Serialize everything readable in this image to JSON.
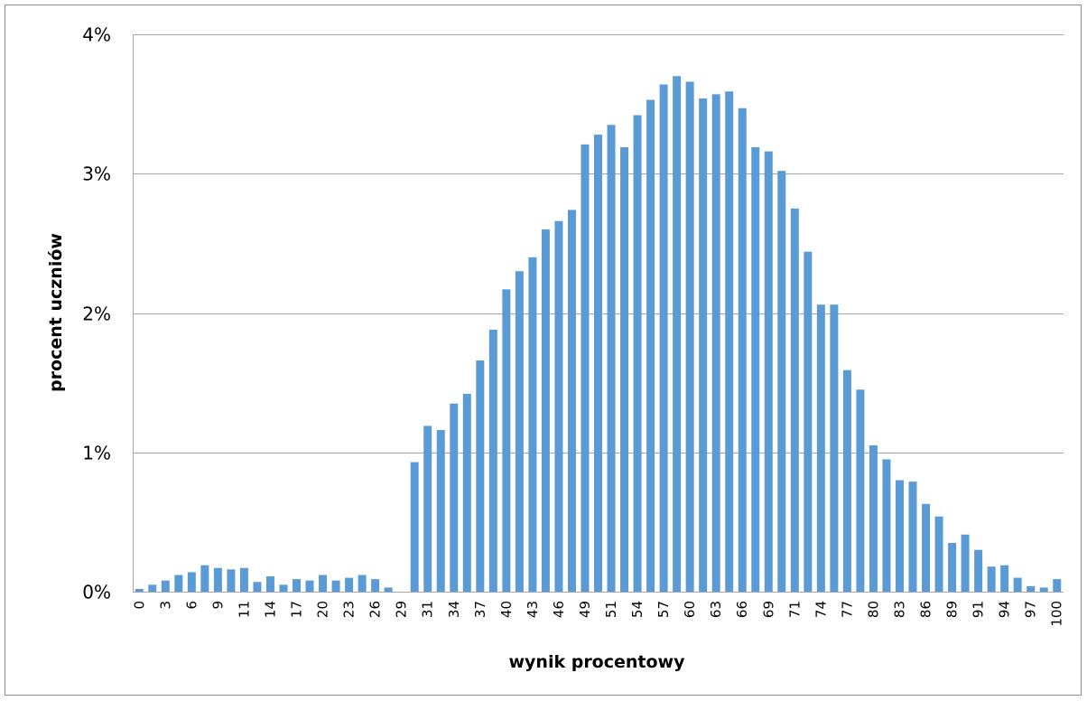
{
  "chart_data": {
    "type": "bar",
    "x_label": "wynik procentowy",
    "y_label": "procent uczniów",
    "categories": [
      "0",
      null,
      "3",
      null,
      "6",
      null,
      "9",
      null,
      "11",
      null,
      "14",
      null,
      "17",
      null,
      "20",
      null,
      "23",
      null,
      "26",
      null,
      "29",
      null,
      "31",
      null,
      "34",
      null,
      "37",
      null,
      "40",
      null,
      "43",
      null,
      "46",
      null,
      "49",
      null,
      "51",
      null,
      "54",
      null,
      "57",
      null,
      "60",
      null,
      "63",
      null,
      "66",
      null,
      "69",
      null,
      "71",
      null,
      "74",
      null,
      "77",
      null,
      "80",
      null,
      "83",
      null,
      "86",
      null,
      "89",
      null,
      "91",
      null,
      "94",
      null,
      "97",
      null,
      "100"
    ],
    "values": [
      0.02,
      0.05,
      0.08,
      0.12,
      0.14,
      0.19,
      0.17,
      0.16,
      0.17,
      0.07,
      0.11,
      0.05,
      0.09,
      0.08,
      0.12,
      0.08,
      0.1,
      0.12,
      0.09,
      0.03,
      0,
      0.93,
      1.19,
      1.16,
      1.35,
      1.42,
      1.66,
      1.88,
      2.17,
      2.3,
      2.4,
      2.6,
      2.66,
      2.74,
      3.21,
      3.28,
      3.35,
      3.19,
      3.42,
      3.53,
      3.64,
      3.7,
      3.66,
      3.54,
      3.57,
      3.59,
      3.47,
      3.19,
      3.16,
      3.02,
      2.75,
      2.44,
      2.06,
      2.06,
      1.59,
      1.45,
      1.05,
      0.95,
      0.8,
      0.79,
      0.63,
      0.54,
      0.35,
      0.41,
      0.3,
      0.18,
      0.19,
      0.1,
      0.04,
      0.03,
      0.09
    ],
    "color": "#5b9bd5",
    "ylim": [
      0,
      4
    ],
    "yticks": [
      {
        "value": 0,
        "label": "0%"
      },
      {
        "value": 1,
        "label": "1%"
      },
      {
        "value": 2,
        "label": "2%"
      },
      {
        "value": 3,
        "label": "3%"
      },
      {
        "value": 4,
        "label": "4%"
      }
    ],
    "grid": true
  }
}
